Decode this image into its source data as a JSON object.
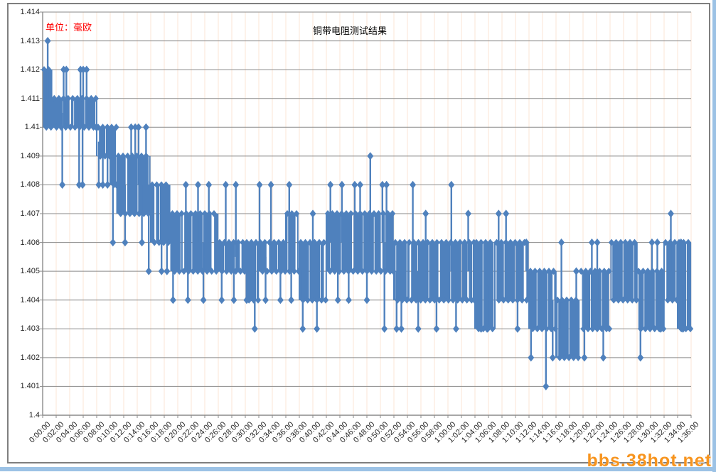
{
  "page": {
    "watermark": "bbs.38hot.net",
    "colors": {
      "watermark": "#f7941e",
      "strip": "#9cc2e5",
      "frame_border": "#7f7f7f"
    }
  },
  "chart_data": {
    "type": "line",
    "title": "铜带电阻测试结果",
    "unit_label": "单位：毫欧",
    "xlabel": "",
    "ylabel": "",
    "marker": "diamond",
    "series_color": "#4f81bd",
    "grid": {
      "h_color": "#8a8a8a",
      "v_color": "#fbe5d6",
      "axis_color": "#8a8a8a"
    },
    "ylim": [
      1.4,
      1.414
    ],
    "y_ticks": [
      1.414,
      1.413,
      1.412,
      1.411,
      1.41,
      1.409,
      1.408,
      1.407,
      1.406,
      1.405,
      1.404,
      1.403,
      1.402,
      1.401,
      1.4
    ],
    "y_tick_labels": [
      "1.414",
      "1.413",
      "1.412",
      "1.411",
      "1.41",
      "1.409",
      "1.408",
      "1.407",
      "1.406",
      "1.405",
      "1.404",
      "1.403",
      "1.402",
      "1.401",
      "1.4"
    ],
    "x_ticks": [
      "0:00:00",
      "0:02:00",
      "0:04:00",
      "0:06:00",
      "0:08:00",
      "0:10:00",
      "0:12:00",
      "0:14:00",
      "0:16:00",
      "0:18:00",
      "0:20:00",
      "0:22:00",
      "0:24:00",
      "0:26:00",
      "0:28:00",
      "0:30:00",
      "0:32:00",
      "0:34:00",
      "0:36:00",
      "0:38:00",
      "0:40:00",
      "0:42:00",
      "0:44:00",
      "0:46:00",
      "0:48:00",
      "0:50:00",
      "0:52:00",
      "0:54:00",
      "0:56:00",
      "0:58:00",
      "1:00:00",
      "1:02:00",
      "1:04:00",
      "1:06:00",
      "1:08:00",
      "1:10:00",
      "1:12:00",
      "1:14:00",
      "1:16:00",
      "1:18:00",
      "1:20:00",
      "1:22:00",
      "1:24:00",
      "1:26:00",
      "1:28:00",
      "1:30:00",
      "1:32:00",
      "1:34:00",
      "1:36:00"
    ],
    "x_minutes_range": [
      0,
      96
    ],
    "band_segments": [
      [
        0,
        1.5,
        1.41,
        1.412
      ],
      [
        1.5,
        8,
        1.41,
        1.411
      ],
      [
        8,
        10,
        1.409,
        1.41
      ],
      [
        10,
        11,
        1.408,
        1.41
      ],
      [
        11,
        16,
        1.407,
        1.409
      ],
      [
        16,
        19,
        1.406,
        1.408
      ],
      [
        19,
        26,
        1.405,
        1.407
      ],
      [
        26,
        30,
        1.405,
        1.406
      ],
      [
        30,
        32,
        1.404,
        1.406
      ],
      [
        32,
        36,
        1.405,
        1.406
      ],
      [
        36,
        38,
        1.405,
        1.407
      ],
      [
        38,
        42,
        1.404,
        1.406
      ],
      [
        42,
        52,
        1.405,
        1.407
      ],
      [
        52,
        64,
        1.404,
        1.406
      ],
      [
        64,
        67,
        1.403,
        1.406
      ],
      [
        67,
        72,
        1.404,
        1.406
      ],
      [
        72,
        76,
        1.403,
        1.405
      ],
      [
        76,
        79.5,
        1.402,
        1.404
      ],
      [
        79.5,
        84,
        1.403,
        1.405
      ],
      [
        84,
        88,
        1.404,
        1.406
      ],
      [
        88,
        92,
        1.403,
        1.405
      ],
      [
        92,
        94,
        1.404,
        1.406
      ],
      [
        94,
        96,
        1.403,
        1.406
      ]
    ],
    "spikes_up": [
      [
        0.75,
        1.413
      ],
      [
        3.1,
        1.412
      ],
      [
        3.5,
        1.412
      ],
      [
        5.6,
        1.412
      ],
      [
        6.0,
        1.412
      ],
      [
        6.5,
        1.412
      ],
      [
        13.1,
        1.41
      ],
      [
        13.7,
        1.41
      ],
      [
        14.2,
        1.41
      ],
      [
        15.3,
        1.41
      ],
      [
        21.2,
        1.408
      ],
      [
        23.0,
        1.408
      ],
      [
        24.6,
        1.408
      ],
      [
        27.1,
        1.408
      ],
      [
        28.6,
        1.408
      ],
      [
        32.1,
        1.408
      ],
      [
        33.8,
        1.408
      ],
      [
        36.5,
        1.408
      ],
      [
        40.0,
        1.407
      ],
      [
        42.6,
        1.408
      ],
      [
        44.3,
        1.408
      ],
      [
        46.2,
        1.408
      ],
      [
        47.0,
        1.408
      ],
      [
        48.5,
        1.409
      ],
      [
        50.3,
        1.408
      ],
      [
        50.9,
        1.408
      ],
      [
        54.8,
        1.408
      ],
      [
        56.7,
        1.407
      ],
      [
        60.5,
        1.408
      ],
      [
        63.0,
        1.407
      ],
      [
        67.5,
        1.407
      ],
      [
        68.6,
        1.407
      ],
      [
        71.6,
        1.406
      ],
      [
        76.8,
        1.406
      ],
      [
        79.0,
        1.405
      ],
      [
        81.3,
        1.406
      ],
      [
        82.1,
        1.406
      ],
      [
        90.2,
        1.406
      ],
      [
        91.0,
        1.406
      ],
      [
        93.0,
        1.407
      ],
      [
        94.5,
        1.406
      ]
    ],
    "spikes_down": [
      [
        2.9,
        1.408
      ],
      [
        5.4,
        1.408
      ],
      [
        5.9,
        1.408
      ],
      [
        8.3,
        1.408
      ],
      [
        8.9,
        1.408
      ],
      [
        9.6,
        1.408
      ],
      [
        10.4,
        1.406
      ],
      [
        12.2,
        1.406
      ],
      [
        14.7,
        1.406
      ],
      [
        15.7,
        1.405
      ],
      [
        17.6,
        1.405
      ],
      [
        18.4,
        1.405
      ],
      [
        19.3,
        1.404
      ],
      [
        21.5,
        1.404
      ],
      [
        23.8,
        1.404
      ],
      [
        26.5,
        1.404
      ],
      [
        28.3,
        1.404
      ],
      [
        30.2,
        1.404
      ],
      [
        31.4,
        1.403
      ],
      [
        33.0,
        1.404
      ],
      [
        35.2,
        1.404
      ],
      [
        36.8,
        1.404
      ],
      [
        38.5,
        1.403
      ],
      [
        40.6,
        1.403
      ],
      [
        43.7,
        1.404
      ],
      [
        45.3,
        1.404
      ],
      [
        48.0,
        1.404
      ],
      [
        50.6,
        1.403
      ],
      [
        52.4,
        1.403
      ],
      [
        53.1,
        1.403
      ],
      [
        55.6,
        1.403
      ],
      [
        58.3,
        1.403
      ],
      [
        61.2,
        1.403
      ],
      [
        64.9,
        1.403
      ],
      [
        65.8,
        1.403
      ],
      [
        70.3,
        1.403
      ],
      [
        72.3,
        1.402
      ],
      [
        74.5,
        1.401
      ],
      [
        75.5,
        1.402
      ],
      [
        80.2,
        1.402
      ],
      [
        83.0,
        1.402
      ],
      [
        88.5,
        1.402
      ],
      [
        91.5,
        1.403
      ],
      [
        94.8,
        1.403
      ]
    ]
  }
}
